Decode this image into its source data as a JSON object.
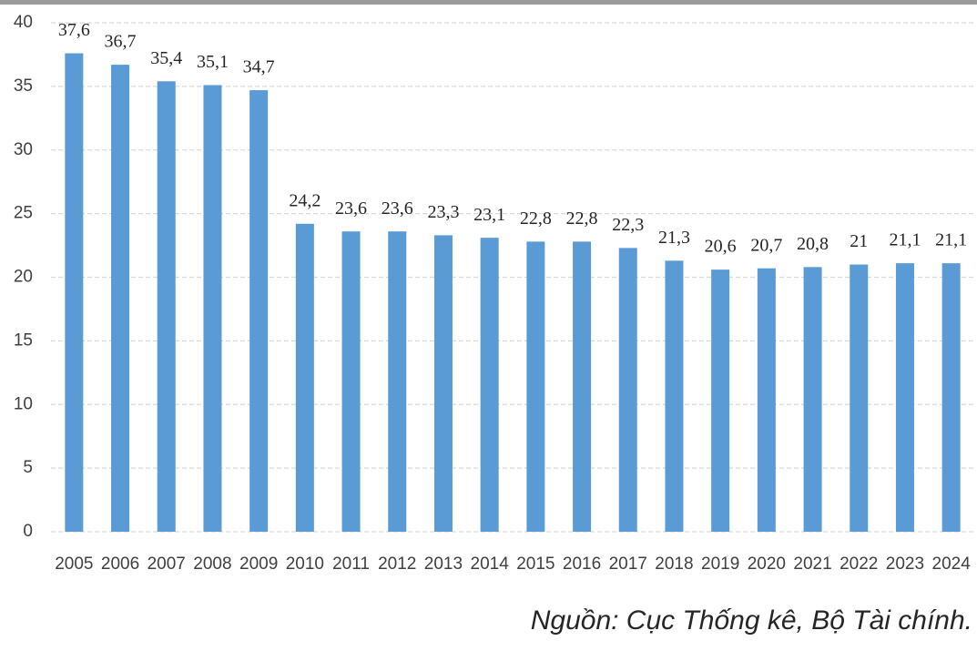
{
  "chart_data": {
    "type": "bar",
    "categories": [
      "2005",
      "2006",
      "2007",
      "2008",
      "2009",
      "2010",
      "2011",
      "2012",
      "2013",
      "2014",
      "2015",
      "2016",
      "2017",
      "2018",
      "2019",
      "2020",
      "2021",
      "2022",
      "2023",
      "2024"
    ],
    "values": [
      37.6,
      36.7,
      35.4,
      35.1,
      34.7,
      24.2,
      23.6,
      23.6,
      23.3,
      23.1,
      22.8,
      22.8,
      22.3,
      21.3,
      20.6,
      20.7,
      20.8,
      21,
      21.1,
      21.1
    ],
    "value_labels": [
      "37,6",
      "36,7",
      "35,4",
      "35,1",
      "34,7",
      "24,2",
      "23,6",
      "23,6",
      "23,3",
      "23,1",
      "22,8",
      "22,8",
      "22,3",
      "21,3",
      "20,6",
      "20,7",
      "20,8",
      "21",
      "21,1",
      "21,1"
    ],
    "color": "#5b9bd5",
    "ylim": [
      0,
      40
    ],
    "yticks": [
      0,
      5,
      10,
      15,
      20,
      25,
      30,
      35,
      40
    ],
    "grid": true,
    "source": "Nguồn: Cục Thống kê, Bộ Tài chính."
  }
}
